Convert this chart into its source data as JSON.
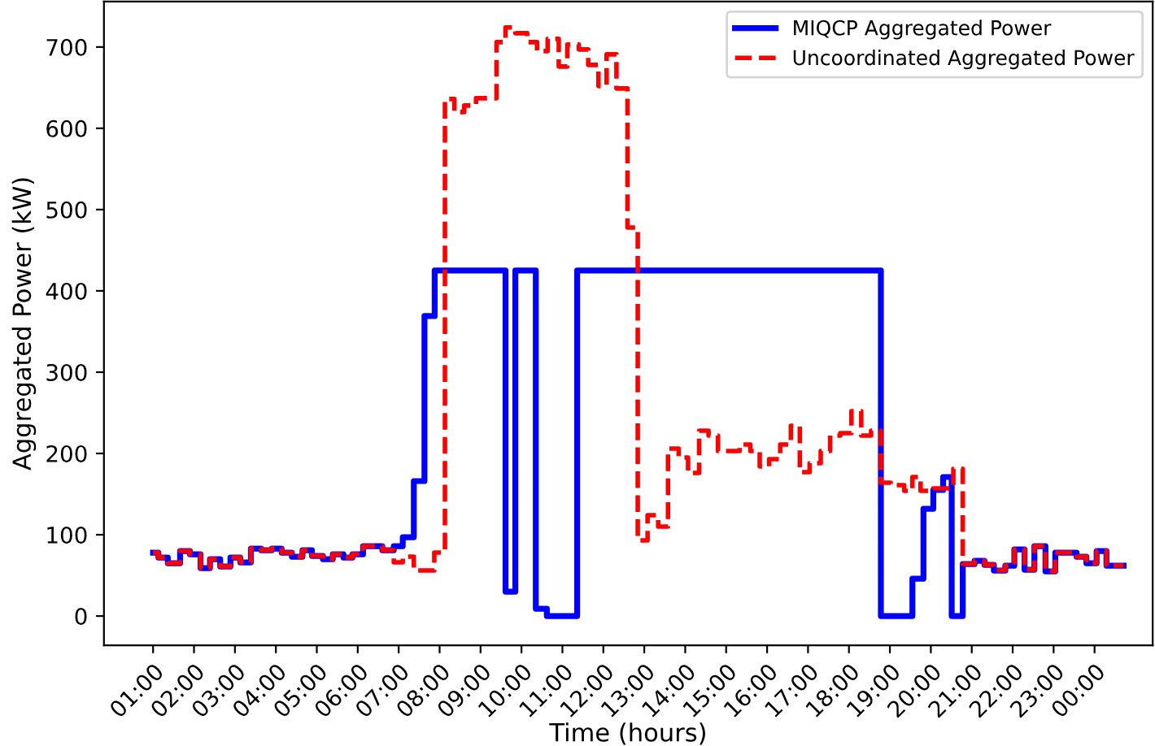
{
  "chart_data": {
    "type": "step",
    "xlabel": "Time (hours)",
    "ylabel": "Aggregated Power (kW)",
    "xlim": [
      -0.2,
      25.42
    ],
    "ylim": [
      -36,
      756
    ],
    "xticks": [
      {
        "value": 1,
        "label": "01:00"
      },
      {
        "value": 2,
        "label": "02:00"
      },
      {
        "value": 3,
        "label": "03:00"
      },
      {
        "value": 4,
        "label": "04:00"
      },
      {
        "value": 5,
        "label": "05:00"
      },
      {
        "value": 6,
        "label": "06:00"
      },
      {
        "value": 7,
        "label": "07:00"
      },
      {
        "value": 8,
        "label": "08:00"
      },
      {
        "value": 9,
        "label": "09:00"
      },
      {
        "value": 10,
        "label": "10:00"
      },
      {
        "value": 11,
        "label": "11:00"
      },
      {
        "value": 12,
        "label": "12:00"
      },
      {
        "value": 13,
        "label": "13:00"
      },
      {
        "value": 14,
        "label": "14:00"
      },
      {
        "value": 15,
        "label": "15:00"
      },
      {
        "value": 16,
        "label": "16:00"
      },
      {
        "value": 17,
        "label": "17:00"
      },
      {
        "value": 18,
        "label": "18:00"
      },
      {
        "value": 19,
        "label": "19:00"
      },
      {
        "value": 20,
        "label": "20:00"
      },
      {
        "value": 21,
        "label": "21:00"
      },
      {
        "value": 22,
        "label": "22:00"
      },
      {
        "value": 23,
        "label": "23:00"
      },
      {
        "value": 24,
        "label": "00:00"
      }
    ],
    "yticks": [
      0,
      100,
      200,
      300,
      400,
      500,
      600,
      700
    ],
    "grid": false,
    "legend": "top right",
    "series": [
      {
        "name": "MIQCP Aggregated Power",
        "color": "#0000ff",
        "line_style": "solid",
        "x": [
          1,
          1.13,
          1.36,
          1.66,
          1.9,
          2.16,
          2.39,
          2.64,
          2.89,
          3.13,
          3.39,
          3.64,
          3.9,
          4.14,
          4.39,
          4.65,
          4.88,
          5.15,
          5.39,
          5.65,
          5.87,
          6.13,
          6.6,
          6.88,
          7.1,
          7.37,
          7.63,
          7.88,
          9.61,
          9.85,
          10.35,
          10.62,
          11.36,
          18.78,
          19.55,
          19.82,
          20.06,
          20.3,
          20.51,
          20.78,
          21.07,
          21.31,
          21.54,
          21.82,
          22.04,
          22.29,
          22.53,
          22.8,
          23.04,
          23.56,
          23.8,
          24.05,
          24.29,
          24.71
        ],
        "values": [
          78,
          72,
          65,
          80,
          76,
          59,
          70,
          61,
          72,
          66,
          83,
          81,
          83,
          78,
          73,
          81,
          74,
          70,
          76,
          72,
          76,
          86,
          81,
          86,
          97,
          166,
          369,
          425,
          30,
          425,
          9,
          0,
          425,
          0,
          46,
          132,
          155,
          171,
          0,
          64,
          68,
          63,
          56,
          62,
          82,
          57,
          86,
          55,
          78,
          73,
          65,
          80,
          62,
          62
        ]
      },
      {
        "name": "Uncoordinated Aggregated Power",
        "color": "#ff0000",
        "line_style": "dashed",
        "x": [
          1,
          1.13,
          1.36,
          1.66,
          1.9,
          2.16,
          2.39,
          2.64,
          2.89,
          3.13,
          3.39,
          3.64,
          3.9,
          4.14,
          4.39,
          4.65,
          4.88,
          5.15,
          5.39,
          5.65,
          5.87,
          6.13,
          6.6,
          6.88,
          7.1,
          7.37,
          7.87,
          8.13,
          8.36,
          8.6,
          8.89,
          9.39,
          9.61,
          9.85,
          10.14,
          10.38,
          10.64,
          10.91,
          11.12,
          11.4,
          11.63,
          11.88,
          12.08,
          12.32,
          12.59,
          12.84,
          13.08,
          13.34,
          13.58,
          13.84,
          14.07,
          14.34,
          14.57,
          14.8,
          15.33,
          15.59,
          15.82,
          16.05,
          16.32,
          16.58,
          16.8,
          17.04,
          17.31,
          17.54,
          17.79,
          18.06,
          18.3,
          18.54,
          18.78,
          19.02,
          19.35,
          19.55,
          19.75,
          20.06,
          20.55,
          20.78,
          21.07,
          21.31,
          21.54,
          21.82,
          22.04,
          22.29,
          22.53,
          22.8,
          23.04,
          23.56,
          23.8,
          24.05,
          24.29,
          24.71
        ],
        "values": [
          78,
          72,
          65,
          80,
          76,
          59,
          70,
          61,
          72,
          66,
          83,
          81,
          83,
          78,
          73,
          81,
          74,
          70,
          76,
          72,
          76,
          86,
          81,
          66,
          73,
          56,
          78,
          636,
          620,
          628,
          637,
          706,
          724,
          717,
          706,
          695,
          710,
          676,
          703,
          697,
          678,
          652,
          691,
          649,
          478,
          93,
          124,
          110,
          206,
          195,
          176,
          228,
          222,
          203,
          211,
          203,
          184,
          193,
          211,
          234,
          177,
          188,
          203,
          222,
          225,
          252,
          222,
          228,
          164,
          161,
          154,
          171,
          154,
          157,
          181,
          64,
          68,
          63,
          56,
          62,
          82,
          57,
          86,
          55,
          78,
          73,
          65,
          80,
          62,
          62
        ]
      }
    ]
  }
}
